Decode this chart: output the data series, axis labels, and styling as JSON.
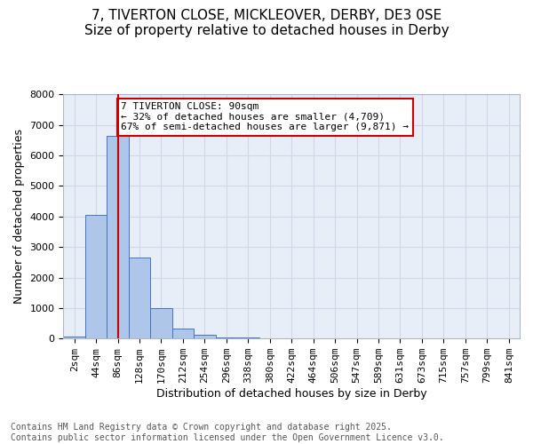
{
  "title_line1": "7, TIVERTON CLOSE, MICKLEOVER, DERBY, DE3 0SE",
  "title_line2": "Size of property relative to detached houses in Derby",
  "bar_values": [
    75,
    4050,
    6650,
    2650,
    1000,
    340,
    130,
    50,
    30,
    0,
    0,
    0,
    0,
    0,
    0,
    0,
    0,
    0,
    0,
    0,
    0
  ],
  "x_labels": [
    "2sqm",
    "44sqm",
    "86sqm",
    "128sqm",
    "170sqm",
    "212sqm",
    "254sqm",
    "296sqm",
    "338sqm",
    "380sqm",
    "422sqm",
    "464sqm",
    "506sqm",
    "547sqm",
    "589sqm",
    "631sqm",
    "673sqm",
    "715sqm",
    "757sqm",
    "799sqm",
    "841sqm"
  ],
  "xlabel": "Distribution of detached houses by size in Derby",
  "ylabel": "Number of detached properties",
  "ylim": [
    0,
    8000
  ],
  "bar_color": "#aec6e8",
  "bar_edge_color": "#4472c4",
  "vline_x": 2,
  "vline_color": "#cc0000",
  "annotation_title": "7 TIVERTON CLOSE: 90sqm",
  "annotation_line1": "← 32% of detached houses are smaller (4,709)",
  "annotation_line2": "67% of semi-detached houses are larger (9,871) →",
  "annotation_box_color": "#cc0000",
  "grid_color": "#d0d8e8",
  "background_color": "#e8eef8",
  "footer_line1": "Contains HM Land Registry data © Crown copyright and database right 2025.",
  "footer_line2": "Contains public sector information licensed under the Open Government Licence v3.0.",
  "title_fontsize": 11,
  "axis_label_fontsize": 9,
  "tick_fontsize": 8,
  "annotation_fontsize": 8,
  "footer_fontsize": 7
}
